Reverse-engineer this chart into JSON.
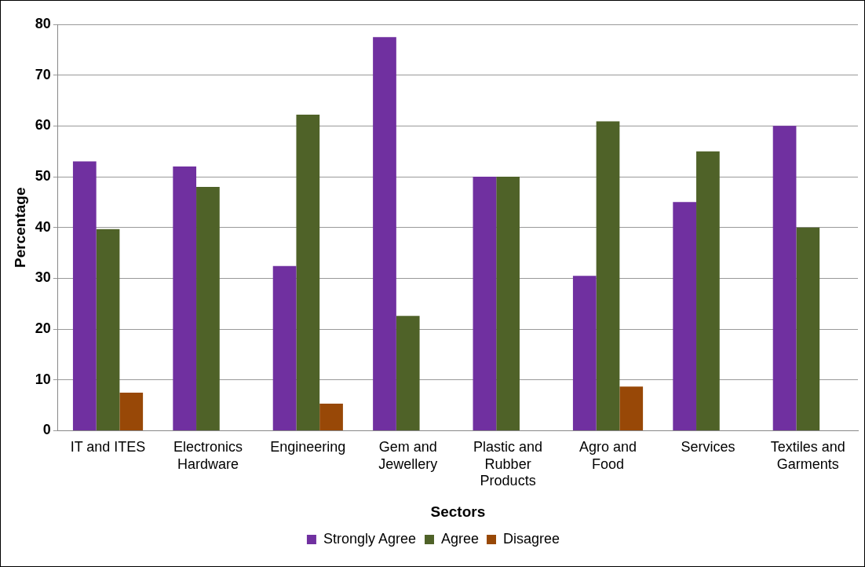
{
  "chart_data": {
    "type": "bar",
    "xlabel": "Sectors",
    "ylabel": "Percentage",
    "categories": [
      "IT and ITES",
      "Electronics Hardware",
      "Engineering",
      "Gem and Jewellery",
      "Plastic and Rubber Products",
      "Agro and Food",
      "Services",
      "Textiles and Garments"
    ],
    "series": [
      {
        "name": "Strongly Agree",
        "color": "#7030a0",
        "values": [
          53,
          52,
          32.4,
          77.5,
          50,
          30.5,
          45,
          60
        ]
      },
      {
        "name": "Agree",
        "color": "#4f6228",
        "values": [
          39.7,
          48,
          62.2,
          22.6,
          50,
          60.9,
          55,
          40
        ]
      },
      {
        "name": "Disagree",
        "color": "#984807",
        "values": [
          7.5,
          null,
          5.3,
          null,
          null,
          8.7,
          null,
          null
        ]
      }
    ],
    "ylim": [
      0,
      80
    ],
    "yticks": [
      0,
      10,
      20,
      30,
      40,
      50,
      60,
      70,
      80
    ],
    "grid": "y",
    "legend": "bottom"
  }
}
